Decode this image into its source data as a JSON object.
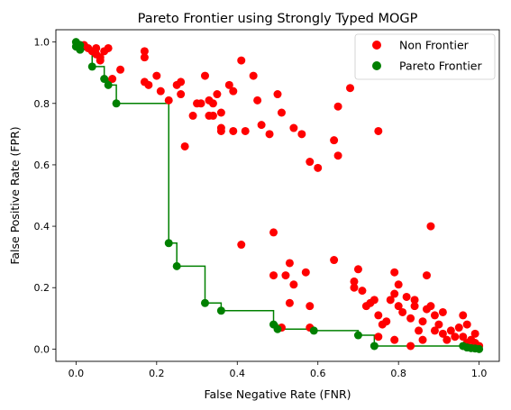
{
  "chart_data": {
    "type": "scatter",
    "title": "Pareto Frontier using Strongly Typed MOGP",
    "xlabel": "False Negative Rate (FNR)",
    "ylabel": "False Positive Rate (FPR)",
    "xlim": [
      -0.05,
      1.05
    ],
    "ylim": [
      -0.04,
      1.04
    ],
    "xticks": [
      0.0,
      0.2,
      0.4,
      0.6,
      0.8,
      1.0
    ],
    "xtick_labels": [
      "0.0",
      "0.2",
      "0.4",
      "0.6",
      "0.8",
      "1.0"
    ],
    "yticks": [
      0.0,
      0.2,
      0.4,
      0.6,
      0.8,
      1.0
    ],
    "ytick_labels": [
      "0.0",
      "0.2",
      "0.4",
      "0.6",
      "0.8",
      "1.0"
    ],
    "grid": false,
    "legend_position": "top-right",
    "series": [
      {
        "name": "Non Frontier",
        "color": "#ff0000",
        "marker": "circle",
        "points": [
          [
            0.01,
            0.99
          ],
          [
            0.02,
            0.99
          ],
          [
            0.03,
            0.98
          ],
          [
            0.04,
            0.97
          ],
          [
            0.05,
            0.98
          ],
          [
            0.05,
            0.96
          ],
          [
            0.06,
            0.95
          ],
          [
            0.06,
            0.94
          ],
          [
            0.07,
            0.97
          ],
          [
            0.08,
            0.98
          ],
          [
            0.09,
            0.88
          ],
          [
            0.11,
            0.91
          ],
          [
            0.17,
            0.97
          ],
          [
            0.17,
            0.95
          ],
          [
            0.17,
            0.87
          ],
          [
            0.18,
            0.86
          ],
          [
            0.2,
            0.89
          ],
          [
            0.21,
            0.84
          ],
          [
            0.23,
            0.81
          ],
          [
            0.25,
            0.86
          ],
          [
            0.26,
            0.87
          ],
          [
            0.26,
            0.83
          ],
          [
            0.27,
            0.66
          ],
          [
            0.29,
            0.76
          ],
          [
            0.3,
            0.8
          ],
          [
            0.31,
            0.8
          ],
          [
            0.32,
            0.89
          ],
          [
            0.33,
            0.81
          ],
          [
            0.33,
            0.76
          ],
          [
            0.34,
            0.76
          ],
          [
            0.34,
            0.8
          ],
          [
            0.35,
            0.83
          ],
          [
            0.36,
            0.77
          ],
          [
            0.36,
            0.72
          ],
          [
            0.36,
            0.71
          ],
          [
            0.38,
            0.86
          ],
          [
            0.39,
            0.71
          ],
          [
            0.39,
            0.84
          ],
          [
            0.41,
            0.94
          ],
          [
            0.42,
            0.71
          ],
          [
            0.44,
            0.89
          ],
          [
            0.45,
            0.81
          ],
          [
            0.46,
            0.73
          ],
          [
            0.48,
            0.7
          ],
          [
            0.5,
            0.83
          ],
          [
            0.51,
            0.77
          ],
          [
            0.54,
            0.72
          ],
          [
            0.56,
            0.7
          ],
          [
            0.58,
            0.61
          ],
          [
            0.6,
            0.59
          ],
          [
            0.64,
            0.68
          ],
          [
            0.65,
            0.79
          ],
          [
            0.65,
            0.63
          ],
          [
            0.68,
            0.85
          ],
          [
            0.75,
            0.71
          ],
          [
            0.41,
            0.34
          ],
          [
            0.49,
            0.38
          ],
          [
            0.49,
            0.24
          ],
          [
            0.52,
            0.24
          ],
          [
            0.53,
            0.28
          ],
          [
            0.54,
            0.21
          ],
          [
            0.53,
            0.15
          ],
          [
            0.57,
            0.25
          ],
          [
            0.58,
            0.14
          ],
          [
            0.58,
            0.07
          ],
          [
            0.51,
            0.07
          ],
          [
            0.64,
            0.29
          ],
          [
            0.7,
            0.26
          ],
          [
            0.69,
            0.22
          ],
          [
            0.69,
            0.2
          ],
          [
            0.71,
            0.19
          ],
          [
            0.72,
            0.14
          ],
          [
            0.73,
            0.15
          ],
          [
            0.74,
            0.16
          ],
          [
            0.75,
            0.11
          ],
          [
            0.76,
            0.08
          ],
          [
            0.77,
            0.09
          ],
          [
            0.78,
            0.16
          ],
          [
            0.79,
            0.18
          ],
          [
            0.8,
            0.14
          ],
          [
            0.8,
            0.21
          ],
          [
            0.79,
            0.25
          ],
          [
            0.81,
            0.12
          ],
          [
            0.82,
            0.17
          ],
          [
            0.83,
            0.1
          ],
          [
            0.84,
            0.14
          ],
          [
            0.84,
            0.16
          ],
          [
            0.85,
            0.06
          ],
          [
            0.86,
            0.09
          ],
          [
            0.87,
            0.13
          ],
          [
            0.87,
            0.24
          ],
          [
            0.88,
            0.4
          ],
          [
            0.88,
            0.14
          ],
          [
            0.89,
            0.11
          ],
          [
            0.89,
            0.06
          ],
          [
            0.9,
            0.08
          ],
          [
            0.91,
            0.12
          ],
          [
            0.91,
            0.05
          ],
          [
            0.92,
            0.03
          ],
          [
            0.93,
            0.06
          ],
          [
            0.94,
            0.04
          ],
          [
            0.95,
            0.07
          ],
          [
            0.96,
            0.11
          ],
          [
            0.96,
            0.04
          ],
          [
            0.97,
            0.08
          ],
          [
            0.97,
            0.02
          ],
          [
            0.98,
            0.03
          ],
          [
            0.99,
            0.05
          ],
          [
            0.99,
            0.02
          ],
          [
            1.0,
            0.01
          ],
          [
            0.83,
            0.01
          ],
          [
            0.86,
            0.03
          ],
          [
            0.75,
            0.04
          ],
          [
            0.79,
            0.03
          ]
        ]
      },
      {
        "name": "Pareto Frontier",
        "color": "#008000",
        "marker": "circle",
        "points": [
          [
            0.0,
            1.0
          ],
          [
            0.0,
            0.985
          ],
          [
            0.01,
            0.975
          ],
          [
            0.01,
            0.99
          ],
          [
            0.04,
            0.92
          ],
          [
            0.07,
            0.88
          ],
          [
            0.08,
            0.86
          ],
          [
            0.1,
            0.8
          ],
          [
            0.23,
            0.345
          ],
          [
            0.25,
            0.27
          ],
          [
            0.32,
            0.15
          ],
          [
            0.36,
            0.125
          ],
          [
            0.49,
            0.08
          ],
          [
            0.5,
            0.065
          ],
          [
            0.59,
            0.06
          ],
          [
            0.7,
            0.045
          ],
          [
            0.74,
            0.01
          ],
          [
            0.96,
            0.01
          ],
          [
            0.97,
            0.005
          ],
          [
            0.98,
            0.003
          ],
          [
            0.99,
            0.002
          ],
          [
            1.0,
            0.0
          ]
        ]
      }
    ],
    "frontier_line": {
      "color": "#008000",
      "style": "step",
      "points": [
        [
          0.0,
          1.0
        ],
        [
          0.0,
          0.985
        ],
        [
          0.01,
          0.975
        ],
        [
          0.04,
          0.92
        ],
        [
          0.07,
          0.88
        ],
        [
          0.08,
          0.86
        ],
        [
          0.1,
          0.8
        ],
        [
          0.23,
          0.345
        ],
        [
          0.25,
          0.27
        ],
        [
          0.32,
          0.15
        ],
        [
          0.36,
          0.125
        ],
        [
          0.49,
          0.08
        ],
        [
          0.5,
          0.065
        ],
        [
          0.59,
          0.06
        ],
        [
          0.7,
          0.045
        ],
        [
          0.74,
          0.01
        ],
        [
          0.96,
          0.01
        ],
        [
          0.98,
          0.003
        ],
        [
          1.0,
          0.0
        ]
      ]
    }
  }
}
